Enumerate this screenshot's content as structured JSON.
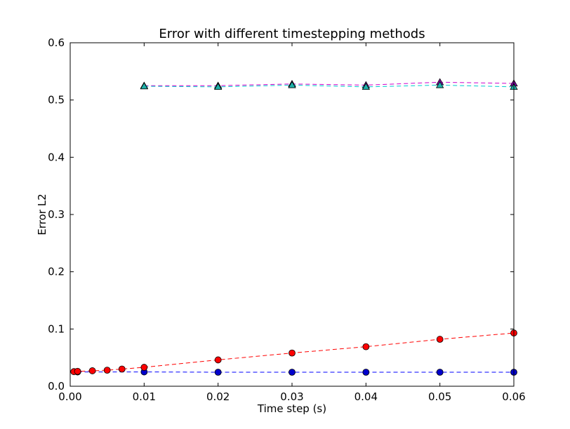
{
  "chart_data": {
    "type": "line",
    "title": "Error with different timestepping methods",
    "xlabel": "Time step (s)",
    "ylabel": "Error L2",
    "xlim": [
      0.0,
      0.06
    ],
    "ylim": [
      0.0,
      0.6
    ],
    "x_ticks": [
      "0.00",
      "0.01",
      "0.02",
      "0.03",
      "0.04",
      "0.05",
      "0.06"
    ],
    "y_ticks": [
      "0.0",
      "0.1",
      "0.2",
      "0.3",
      "0.4",
      "0.5",
      "0.6"
    ],
    "grid": false,
    "series": [
      {
        "line_color": "#0000ff",
        "marker_fill": "#0000cc",
        "marker": "circle",
        "linestyle": "dashed",
        "x": [
          0.001,
          0.01,
          0.02,
          0.03,
          0.04,
          0.05,
          0.06
        ],
        "y": [
          0.025,
          0.025,
          0.0245,
          0.0245,
          0.0245,
          0.0245,
          0.0245
        ]
      },
      {
        "line_color": "#ff0000",
        "marker_fill": "#ff0000",
        "marker": "circle",
        "linestyle": "dashed",
        "x": [
          0.0005,
          0.001,
          0.003,
          0.005,
          0.007,
          0.01,
          0.02,
          0.03,
          0.04,
          0.05,
          0.06
        ],
        "y": [
          0.0255,
          0.026,
          0.027,
          0.028,
          0.03,
          0.033,
          0.046,
          0.058,
          0.069,
          0.082,
          0.093
        ]
      },
      {
        "line_color": "#cc00cc",
        "marker_fill": "#8b00b0",
        "marker": "triangle",
        "linestyle": "dashed",
        "x": [
          0.01,
          0.02,
          0.03,
          0.04,
          0.05,
          0.06
        ],
        "y": [
          0.525,
          0.525,
          0.528,
          0.526,
          0.531,
          0.529
        ]
      },
      {
        "line_color": "#00cccc",
        "marker_fill": "#20b2aa",
        "marker": "triangle",
        "linestyle": "dashed",
        "x": [
          0.01,
          0.02,
          0.03,
          0.04,
          0.05,
          0.06
        ],
        "y": [
          0.524,
          0.523,
          0.526,
          0.523,
          0.526,
          0.523
        ]
      }
    ]
  }
}
